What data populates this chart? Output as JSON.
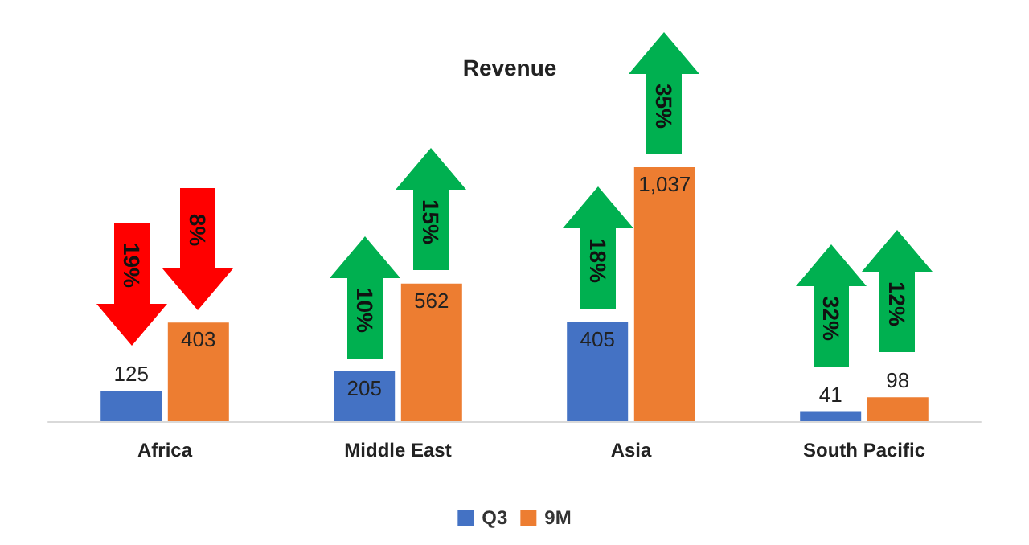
{
  "chart_data": {
    "type": "bar",
    "title": "Revenue",
    "categories": [
      "Africa",
      "Middle East",
      "Asia",
      "South Pacific"
    ],
    "series": [
      {
        "name": "Q3",
        "color": "#4472c4",
        "values": [
          125,
          205,
          405,
          41
        ],
        "value_labels": [
          "125",
          "205",
          "405",
          "41"
        ]
      },
      {
        "name": "9M",
        "color": "#ed7d31",
        "values": [
          403,
          562,
          1037,
          98
        ],
        "value_labels": [
          "403",
          "562",
          "1,037",
          "98"
        ]
      }
    ],
    "tick_labels": "x",
    "legend": "bottom",
    "annotations": [
      "19%",
      "8%",
      "10%",
      "15%",
      "18%",
      "35%",
      "32%",
      "12%"
    ]
  }
}
